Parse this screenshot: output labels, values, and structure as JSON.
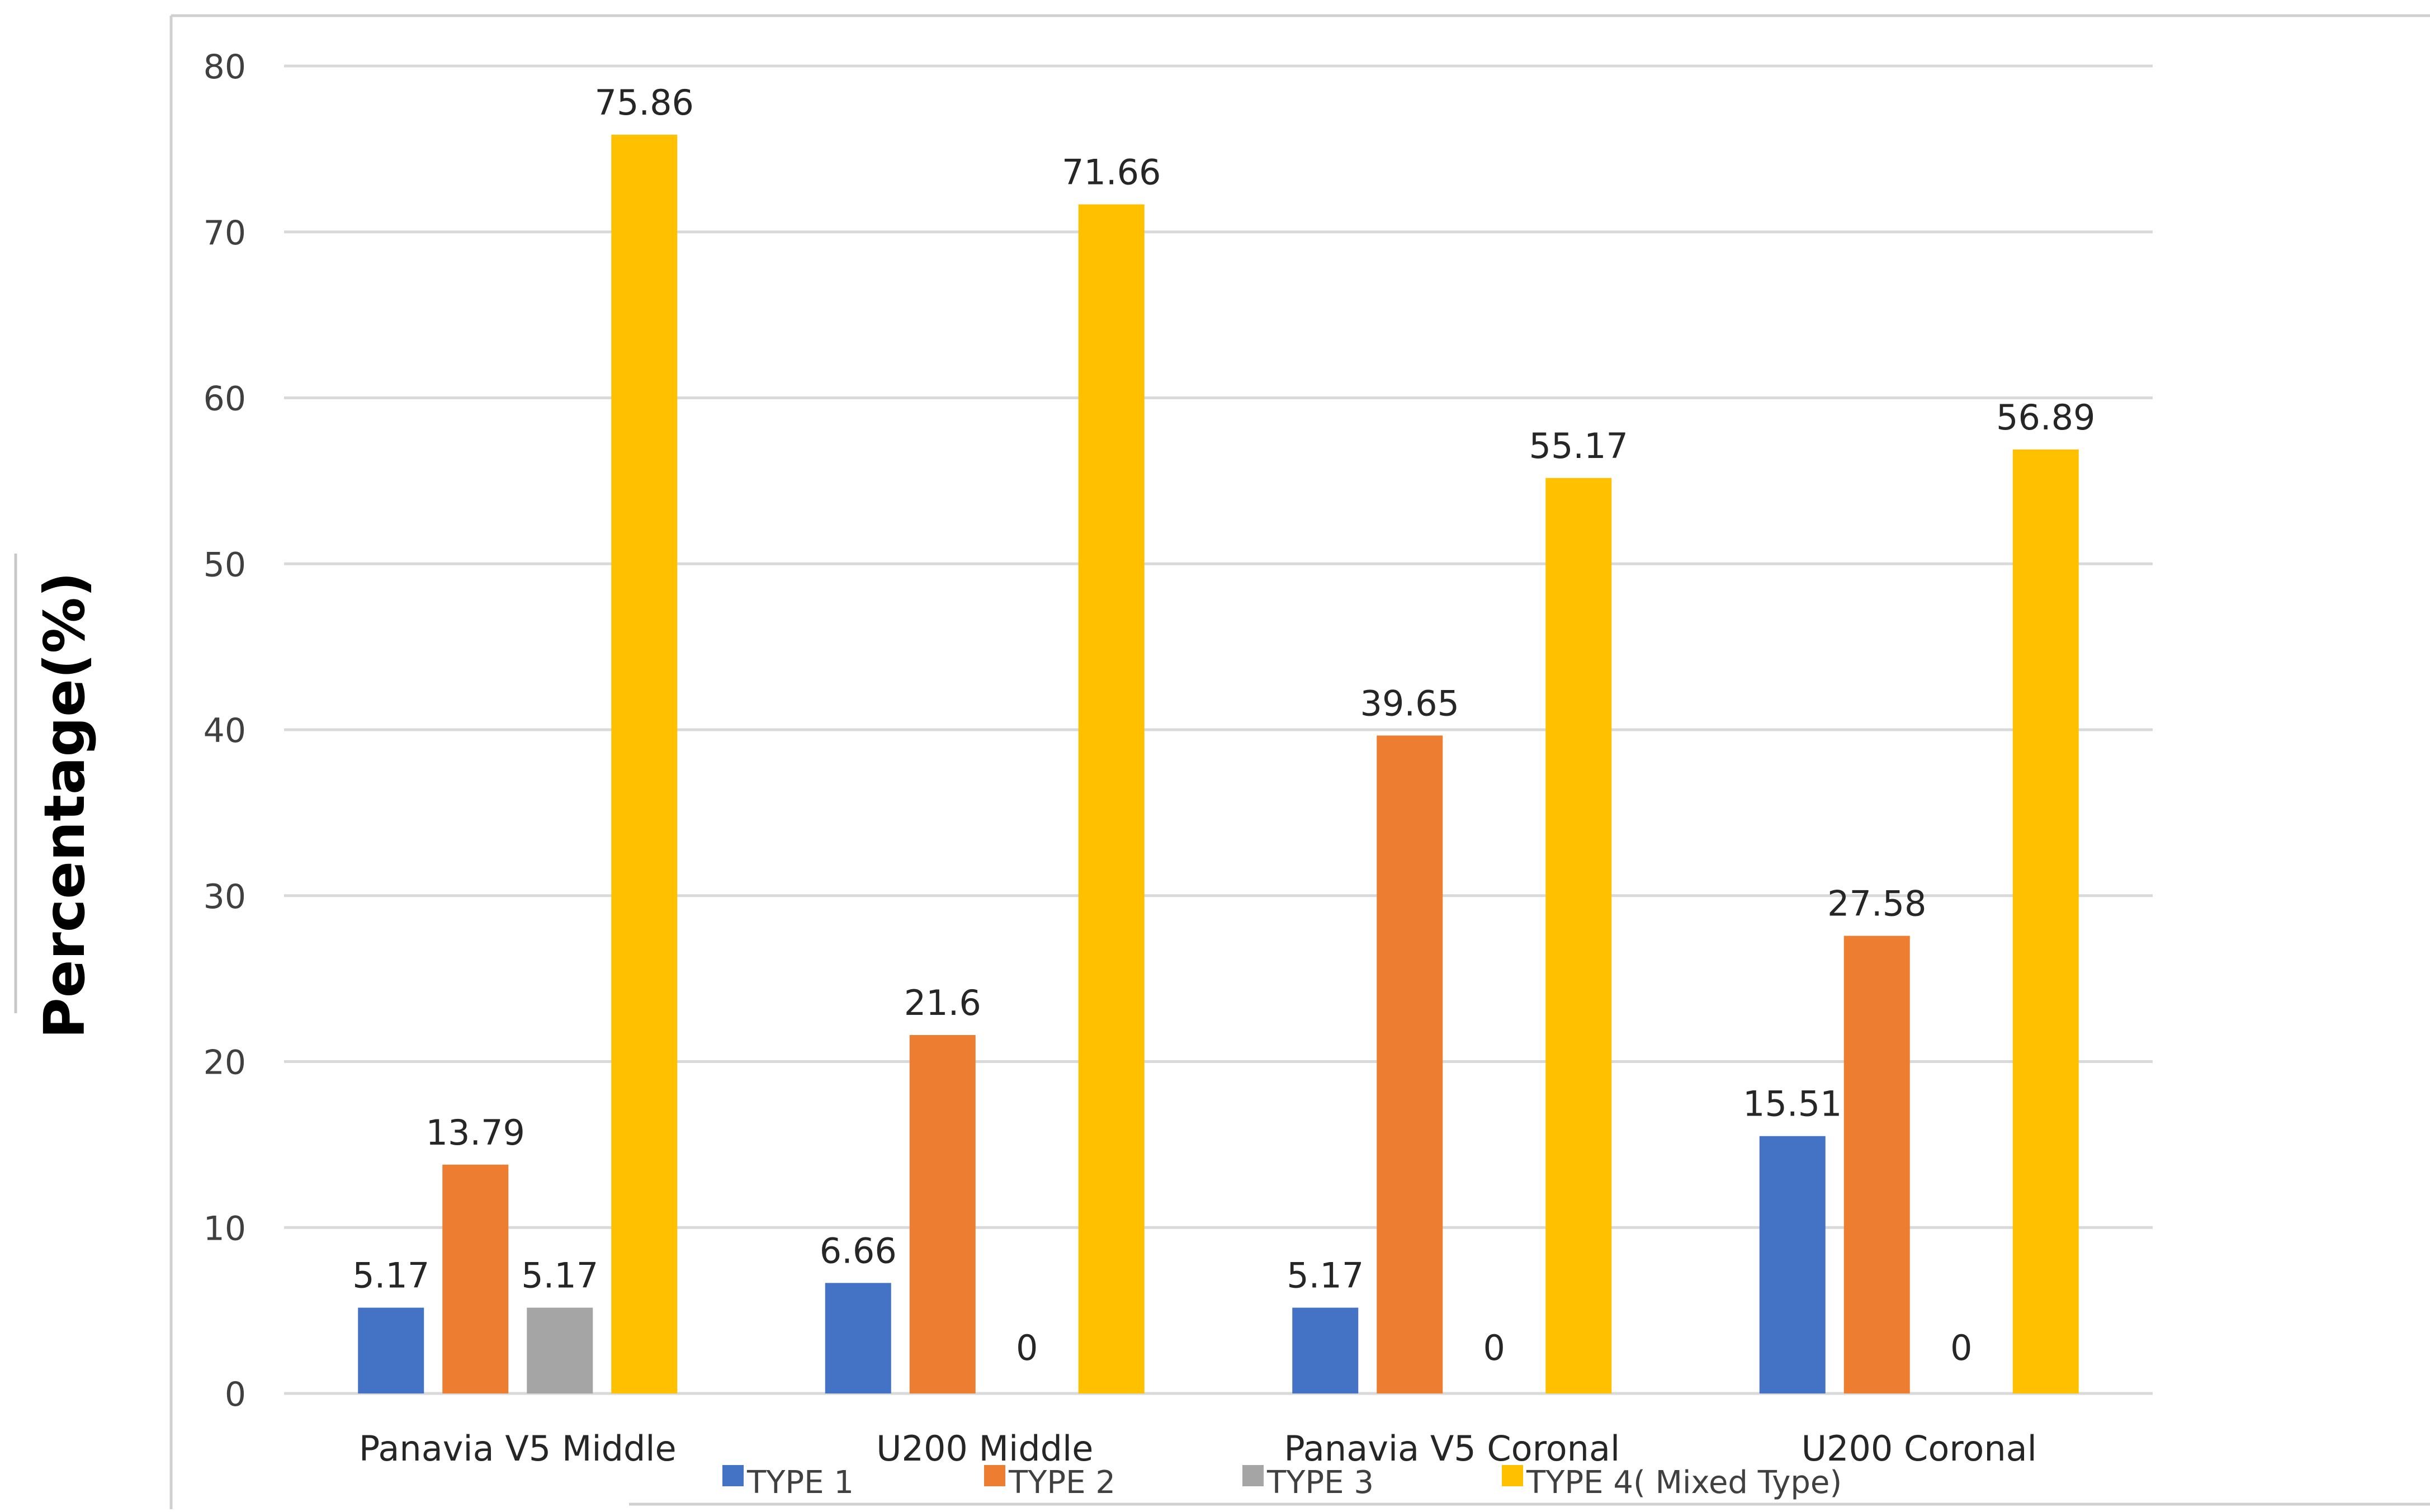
{
  "chart_data": {
    "type": "bar",
    "title": "",
    "xlabel": "",
    "ylabel": "Percentage(%)",
    "ylim": [
      0,
      80
    ],
    "yticks": [
      0,
      10,
      20,
      30,
      40,
      50,
      60,
      70,
      80
    ],
    "grid": true,
    "legend_position": "bottom",
    "categories": [
      "Panavia V5 Middle",
      "U200 Middle",
      "Panavia V5 Coronal",
      "U200 Coronal"
    ],
    "series": [
      {
        "name": "TYPE 1",
        "color": "#4472C4",
        "values": [
          5.17,
          6.66,
          5.17,
          15.51
        ],
        "labels": [
          "5.17",
          "6.66",
          "5.17",
          "15.51"
        ]
      },
      {
        "name": "TYPE 2",
        "color": "#ED7D31",
        "values": [
          13.79,
          21.6,
          39.65,
          27.58
        ],
        "labels": [
          "13.79",
          "21.6",
          "39.65",
          "27.58"
        ]
      },
      {
        "name": "TYPE 3",
        "color": "#A5A5A5",
        "values": [
          5.17,
          0,
          0,
          0
        ],
        "labels": [
          "5.17",
          "0",
          "0",
          "0"
        ]
      },
      {
        "name": "TYPE 4( Mixed Type)",
        "color": "#FFC000",
        "values": [
          75.86,
          71.66,
          55.17,
          56.89
        ],
        "labels": [
          "75.86",
          "71.66",
          "55.17",
          "56.89"
        ]
      }
    ]
  }
}
